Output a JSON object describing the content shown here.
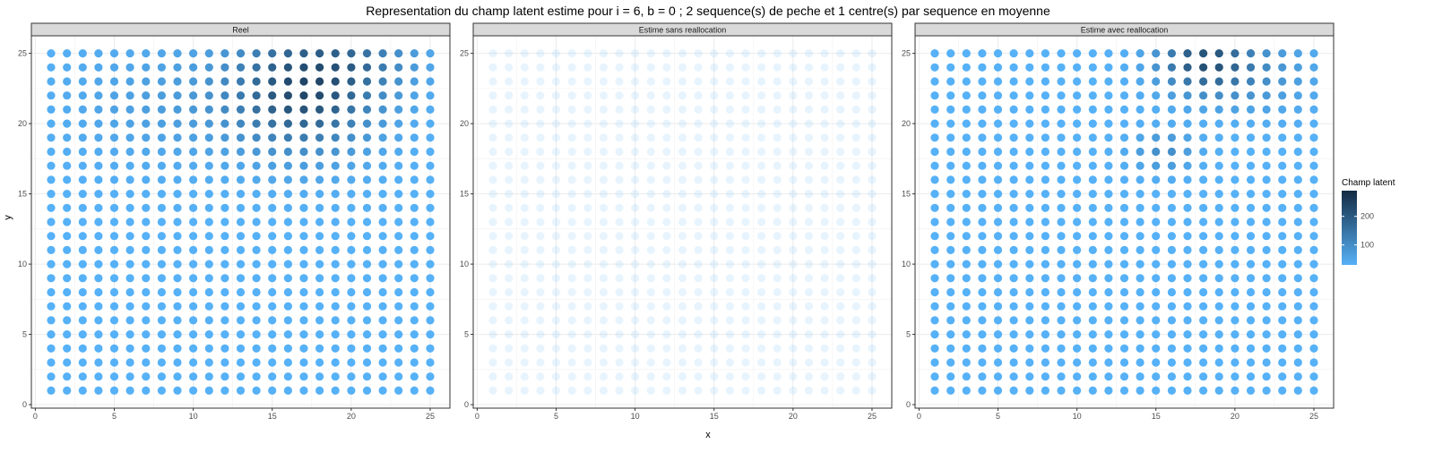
{
  "chart_data": {
    "type": "scatter",
    "title": "Representation du champ latent estime pour i = 6, b = 0 ; 2 sequence(s) de peche et 1 centre(s) par sequence en moyenne",
    "xlabel": "x",
    "ylabel": "y",
    "xlim": [
      -0.25,
      26.25
    ],
    "ylim": [
      -0.25,
      26.25
    ],
    "x_ticks": [
      0,
      5,
      10,
      15,
      20,
      25
    ],
    "y_ticks": [
      0,
      5,
      10,
      15,
      20,
      25
    ],
    "grid": true,
    "grid_x": [
      1,
      25
    ],
    "grid_y": [
      1,
      25
    ],
    "baseline_value": 30,
    "legend": {
      "title": "Champ latent",
      "position": "right",
      "min": 30,
      "max": 290,
      "ticks": [
        100,
        200
      ],
      "low_color": "#56b1f7",
      "high_color": "#132b43"
    },
    "panels": [
      {
        "strip": "Reel",
        "hotspots": [
          {
            "x": 17,
            "y": 22.5,
            "amp": 200,
            "sx": 3.2,
            "sy": 3.0
          },
          {
            "x": 21,
            "y": 24.5,
            "amp": 60,
            "sx": 2.5,
            "sy": 1.5
          },
          {
            "x": 8,
            "y": 21.5,
            "amp": 35,
            "sx": 4.0,
            "sy": 3.0
          }
        ],
        "point_opacity": 1
      },
      {
        "strip": "Estime sans reallocation",
        "hotspots": [],
        "point_opacity": 0.13
      },
      {
        "strip": "Estime avec reallocation",
        "hotspots": [
          {
            "x": 18,
            "y": 24.5,
            "amp": 175,
            "sx": 2.0,
            "sy": 1.6
          },
          {
            "x": 15.5,
            "y": 18,
            "amp": 70,
            "sx": 1.3,
            "sy": 1.0
          },
          {
            "x": 21.5,
            "y": 23.5,
            "amp": 55,
            "sx": 2.5,
            "sy": 1.8
          }
        ],
        "point_opacity": 1
      }
    ]
  }
}
